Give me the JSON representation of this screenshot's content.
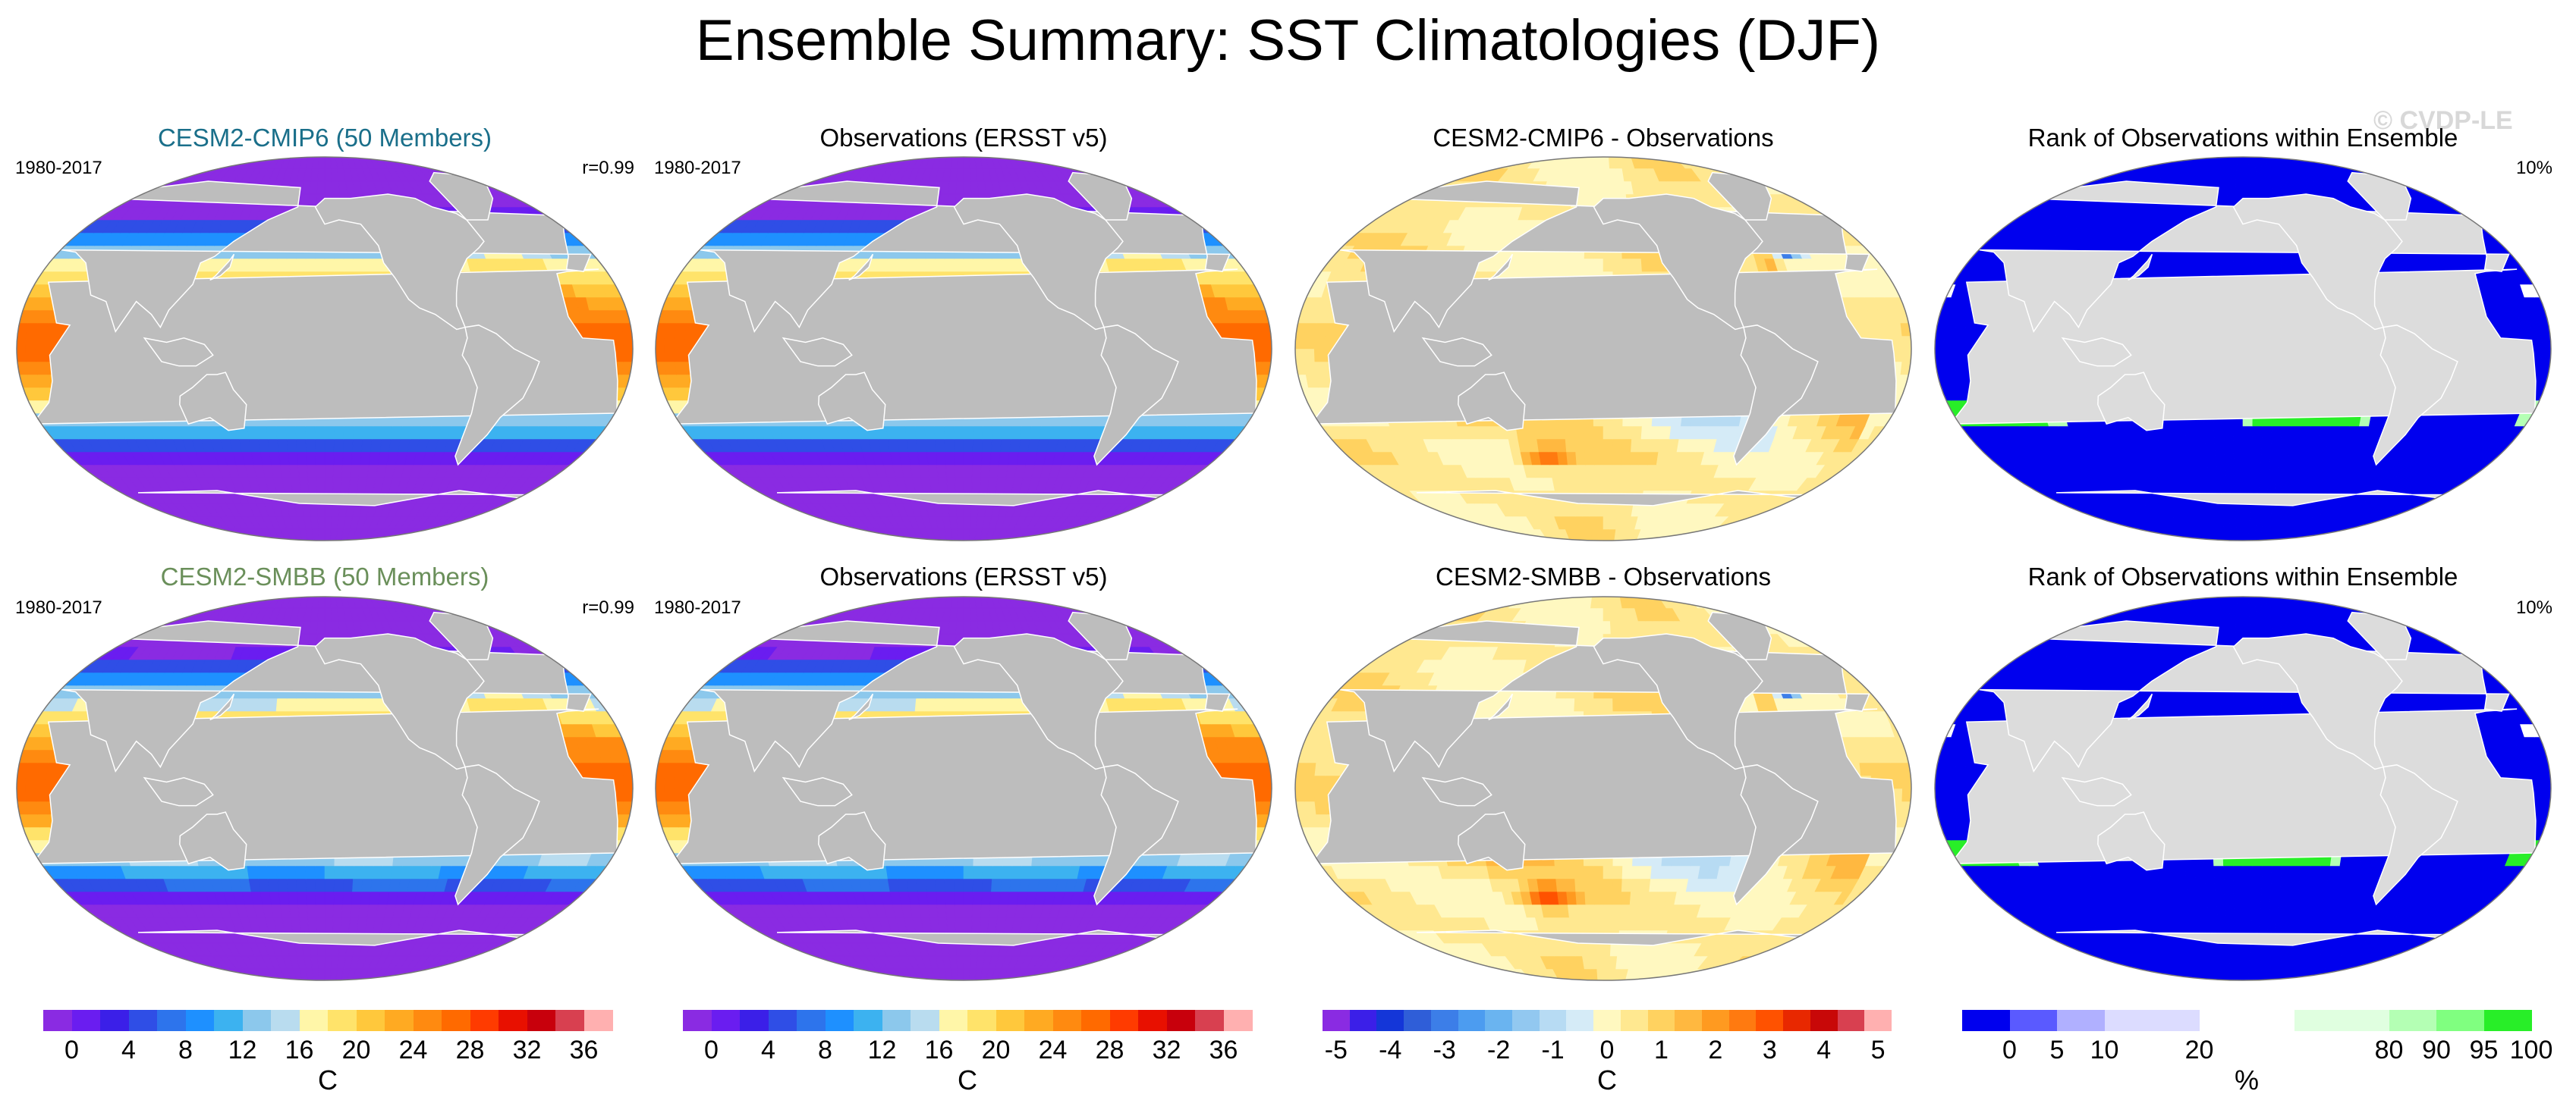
{
  "title": "Ensemble Summary: SST Climatologies (DJF)",
  "watermark": "© CVDP-LE",
  "palettes": {
    "sst": [
      "#8a2be2",
      "#6a1df0",
      "#3b1fe8",
      "#2f4ee6",
      "#2d74ec",
      "#1e90ff",
      "#3cb2f0",
      "#8cc8ec",
      "#b9dcef",
      "#fff6a8",
      "#ffe36a",
      "#ffc83c",
      "#ffaa22",
      "#ff8a10",
      "#ff6a00",
      "#ff3b00",
      "#e81000",
      "#c8000c",
      "#d84050",
      "#ffb0b0"
    ],
    "diff": [
      "#8a2be2",
      "#3b1fe8",
      "#1436d8",
      "#2f5ed8",
      "#3c7ee8",
      "#4c9cf0",
      "#6ab4f0",
      "#92c8f0",
      "#b7dbf3",
      "#d5ebf7",
      "#fff8c0",
      "#ffe890",
      "#ffd260",
      "#ffb840",
      "#ff9a20",
      "#ff7a10",
      "#ff5200",
      "#e82800",
      "#c80808",
      "#d84050",
      "#ffb0b0"
    ],
    "rank": [
      "#0000ee",
      "#5a5aff",
      "#b0b0ff",
      "#dcdcff",
      "#ffffff",
      "#e0ffe0",
      "#b4ffb4",
      "#80ff80",
      "#28ee28"
    ]
  },
  "panels": [
    {
      "title": "CESM2-CMIP6 (50 Members)",
      "title_color": "#1a6f8a",
      "left_label": "1980-2017",
      "right_label": "r=0.99",
      "type": "sst"
    },
    {
      "title": "Observations (ERSST v5)",
      "title_color": "#000000",
      "left_label": "1980-2017",
      "right_label": "",
      "type": "sst"
    },
    {
      "title": "CESM2-CMIP6 - Observations",
      "title_color": "#000000",
      "left_label": "",
      "right_label": "",
      "type": "diff"
    },
    {
      "title": "Rank of Observations within Ensemble",
      "title_color": "#000000",
      "left_label": "",
      "right_label": "10%",
      "type": "rank"
    },
    {
      "title": "CESM2-SMBB (50 Members)",
      "title_color": "#6a8f5a",
      "left_label": "1980-2017",
      "right_label": "r=0.99",
      "type": "sst"
    },
    {
      "title": "Observations (ERSST v5)",
      "title_color": "#000000",
      "left_label": "1980-2017",
      "right_label": "",
      "type": "sst"
    },
    {
      "title": "CESM2-SMBB - Observations",
      "title_color": "#000000",
      "left_label": "",
      "right_label": "",
      "type": "diff"
    },
    {
      "title": "Rank of Observations within Ensemble",
      "title_color": "#000000",
      "left_label": "",
      "right_label": "10%",
      "type": "rank"
    }
  ],
  "colorbars": [
    {
      "type": "sst",
      "unit": "C",
      "ticks": [
        "0",
        "4",
        "8",
        "12",
        "16",
        "20",
        "24",
        "28",
        "32",
        "36"
      ]
    },
    {
      "type": "sst",
      "unit": "C",
      "ticks": [
        "0",
        "4",
        "8",
        "12",
        "16",
        "20",
        "24",
        "28",
        "32",
        "36"
      ]
    },
    {
      "type": "diff",
      "unit": "C",
      "ticks": [
        "-5",
        "-4",
        "-3",
        "-2",
        "-1",
        "0",
        "1",
        "2",
        "3",
        "4",
        "5"
      ]
    },
    {
      "type": "rank",
      "unit": "%",
      "ticks": [
        "0",
        "5",
        "10",
        "20",
        "80",
        "90",
        "95",
        "100"
      ]
    }
  ],
  "chart_data": [
    {
      "type": "heatmap",
      "title": "CESM2-CMIP6 (50 Members)",
      "period": "1980-2017",
      "pattern_correlation": 0.99,
      "units": "C",
      "colorbar_range": [
        0,
        36
      ],
      "colorbar_step": 2
    },
    {
      "type": "heatmap",
      "title": "Observations (ERSST v5)",
      "period": "1980-2017",
      "units": "C",
      "colorbar_range": [
        0,
        36
      ],
      "colorbar_step": 2
    },
    {
      "type": "heatmap",
      "title": "CESM2-CMIP6 - Observations",
      "units": "C",
      "colorbar_range": [
        -5,
        5
      ],
      "colorbar_step": 0.5
    },
    {
      "type": "heatmap",
      "title": "Rank of Observations within Ensemble",
      "units": "%",
      "area_outside_10pct": "10%",
      "colorbar_ticks": [
        0,
        5,
        10,
        20,
        80,
        90,
        95,
        100
      ]
    },
    {
      "type": "heatmap",
      "title": "CESM2-SMBB (50 Members)",
      "period": "1980-2017",
      "pattern_correlation": 0.99,
      "units": "C",
      "colorbar_range": [
        0,
        36
      ],
      "colorbar_step": 2
    },
    {
      "type": "heatmap",
      "title": "Observations (ERSST v5)",
      "period": "1980-2017",
      "units": "C",
      "colorbar_range": [
        0,
        36
      ],
      "colorbar_step": 2
    },
    {
      "type": "heatmap",
      "title": "CESM2-SMBB - Observations",
      "units": "C",
      "colorbar_range": [
        -5,
        5
      ],
      "colorbar_step": 0.5
    },
    {
      "type": "heatmap",
      "title": "Rank of Observations within Ensemble",
      "units": "%",
      "area_outside_10pct": "10%",
      "colorbar_ticks": [
        0,
        5,
        10,
        20,
        80,
        90,
        95,
        100
      ]
    }
  ]
}
